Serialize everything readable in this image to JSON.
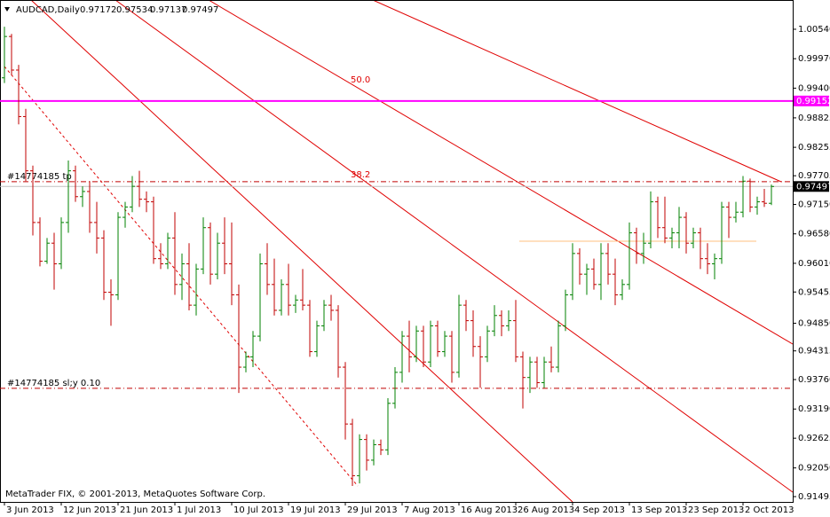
{
  "chart_data": {
    "type": "ohlc",
    "title": "AUDCAD,Daily",
    "footer": "MetaTrader FIX, © 2001-2013, MetaQuotes Software Corp.",
    "up_color": "#008000",
    "down_color": "#c00000",
    "open": [
      0.996,
      1.004,
      0.9975,
      0.9885,
      0.978,
      0.968,
      0.9605,
      0.964,
      0.96,
      0.968,
      0.978,
      0.973,
      0.974,
      0.968,
      0.965,
      0.9545,
      0.954,
      0.969,
      0.971,
      0.975,
      0.9725,
      0.972,
      0.961,
      0.96,
      0.965,
      0.956,
      0.96,
      0.952,
      0.959,
      0.967,
      0.958,
      0.964,
      0.96,
      0.954,
      0.94,
      0.942,
      0.946,
      0.96,
      0.956,
      0.951,
      0.956,
      0.952,
      0.953,
      0.952,
      0.943,
      0.948,
      0.952,
      0.951,
      0.94,
      0.929,
      0.919,
      0.926,
      0.922,
      0.925,
      0.924,
      0.933,
      0.939,
      0.946,
      0.942,
      0.947,
      0.941,
      0.948,
      0.943,
      0.946,
      0.939,
      0.952,
      0.949,
      0.944,
      0.942,
      0.947,
      0.95,
      0.948,
      0.949,
      0.942,
      0.938,
      0.941,
      0.937,
      0.941,
      0.94,
      0.948,
      0.954,
      0.962,
      0.958,
      0.959,
      0.956,
      0.962,
      0.958,
      0.954,
      0.956,
      0.966,
      0.962,
      0.964,
      0.972,
      0.967,
      0.965,
      0.966,
      0.969,
      0.964,
      0.966,
      0.961,
      0.96,
      0.961,
      0.971,
      0.969,
      0.97,
      0.976,
      0.971,
      0.972,
      0.97172
    ],
    "high": [
      1.0059,
      1.0045,
      0.9985,
      0.99,
      0.979,
      0.969,
      0.965,
      0.966,
      0.969,
      0.98,
      0.979,
      0.975,
      0.976,
      0.972,
      0.9665,
      0.957,
      0.97,
      0.972,
      0.977,
      0.978,
      0.974,
      0.973,
      0.964,
      0.966,
      0.97,
      0.962,
      0.964,
      0.96,
      0.969,
      0.968,
      0.966,
      0.969,
      0.968,
      0.956,
      0.943,
      0.947,
      0.962,
      0.964,
      0.961,
      0.957,
      0.96,
      0.954,
      0.959,
      0.953,
      0.949,
      0.953,
      0.954,
      0.952,
      0.941,
      0.93,
      0.927,
      0.927,
      0.926,
      0.926,
      0.934,
      0.94,
      0.947,
      0.949,
      0.948,
      0.948,
      0.949,
      0.949,
      0.947,
      0.947,
      0.954,
      0.953,
      0.951,
      0.946,
      0.948,
      0.952,
      0.951,
      0.951,
      0.953,
      0.943,
      0.942,
      0.942,
      0.942,
      0.944,
      0.949,
      0.955,
      0.964,
      0.963,
      0.96,
      0.961,
      0.964,
      0.964,
      0.961,
      0.957,
      0.968,
      0.967,
      0.966,
      0.974,
      0.973,
      0.973,
      0.967,
      0.971,
      0.97,
      0.967,
      0.967,
      0.964,
      0.962,
      0.972,
      0.972,
      0.972,
      0.977,
      0.9765,
      0.973,
      0.9745,
      0.97534
    ],
    "low": [
      0.995,
      0.9965,
      0.987,
      0.976,
      0.9655,
      0.9595,
      0.96,
      0.955,
      0.959,
      0.966,
      0.972,
      0.971,
      0.966,
      0.962,
      0.953,
      0.948,
      0.953,
      0.967,
      0.97,
      0.971,
      0.97,
      0.96,
      0.959,
      0.959,
      0.954,
      0.953,
      0.951,
      0.95,
      0.958,
      0.956,
      0.957,
      0.958,
      0.952,
      0.935,
      0.939,
      0.94,
      0.945,
      0.954,
      0.95,
      0.95,
      0.95,
      0.9505,
      0.951,
      0.942,
      0.942,
      0.947,
      0.949,
      0.938,
      0.926,
      0.917,
      0.9175,
      0.92,
      0.921,
      0.923,
      0.923,
      0.932,
      0.937,
      0.939,
      0.941,
      0.94,
      0.94,
      0.942,
      0.942,
      0.937,
      0.938,
      0.947,
      0.942,
      0.936,
      0.941,
      0.946,
      0.946,
      0.947,
      0.941,
      0.932,
      0.935,
      0.936,
      0.936,
      0.939,
      0.939,
      0.947,
      0.953,
      0.956,
      0.954,
      0.955,
      0.953,
      0.956,
      0.952,
      0.953,
      0.955,
      0.96,
      0.96,
      0.963,
      0.965,
      0.964,
      0.963,
      0.963,
      0.962,
      0.963,
      0.959,
      0.958,
      0.957,
      0.96,
      0.965,
      0.968,
      0.969,
      0.97,
      0.9695,
      0.971,
      0.97137
    ],
    "close": [
      1.004,
      0.9975,
      0.9885,
      0.978,
      0.968,
      0.9605,
      0.964,
      0.96,
      0.968,
      0.978,
      0.973,
      0.974,
      0.968,
      0.965,
      0.9545,
      0.954,
      0.969,
      0.971,
      0.975,
      0.9725,
      0.972,
      0.961,
      0.96,
      0.965,
      0.956,
      0.96,
      0.952,
      0.959,
      0.967,
      0.958,
      0.964,
      0.96,
      0.954,
      0.94,
      0.942,
      0.946,
      0.96,
      0.956,
      0.951,
      0.956,
      0.952,
      0.953,
      0.952,
      0.943,
      0.948,
      0.952,
      0.951,
      0.94,
      0.929,
      0.919,
      0.926,
      0.922,
      0.925,
      0.924,
      0.933,
      0.939,
      0.946,
      0.942,
      0.947,
      0.941,
      0.948,
      0.943,
      0.946,
      0.939,
      0.952,
      0.949,
      0.944,
      0.942,
      0.947,
      0.95,
      0.948,
      0.949,
      0.942,
      0.938,
      0.941,
      0.937,
      0.941,
      0.94,
      0.948,
      0.954,
      0.962,
      0.958,
      0.959,
      0.956,
      0.962,
      0.958,
      0.954,
      0.956,
      0.966,
      0.962,
      0.964,
      0.972,
      0.967,
      0.965,
      0.966,
      0.969,
      0.964,
      0.966,
      0.961,
      0.96,
      0.961,
      0.971,
      0.969,
      0.97,
      0.976,
      0.971,
      0.972,
      0.97172,
      0.97497
    ],
    "xlim": [
      -0.625,
      111.0
    ],
    "ylim": [
      0.91392,
      1.01106
    ],
    "xticks": [
      {
        "value": 0,
        "label": "3 Jun 2013"
      },
      {
        "value": 8,
        "label": "12 Jun 2013"
      },
      {
        "value": 16,
        "label": "21 Jun 2013"
      },
      {
        "value": 24,
        "label": "1 Jul 2013"
      },
      {
        "value": 32,
        "label": "10 Jul 2013"
      },
      {
        "value": 40,
        "label": "19 Jul 2013"
      },
      {
        "value": 48,
        "label": "29 Jul 2013"
      },
      {
        "value": 56,
        "label": "7 Aug 2013"
      },
      {
        "value": 64,
        "label": "16 Aug 2013"
      },
      {
        "value": 72,
        "label": "26 Aug 2013"
      },
      {
        "value": 80,
        "label": "4 Sep 2013"
      },
      {
        "value": 88,
        "label": "13 Sep 2013"
      },
      {
        "value": 96,
        "label": "23 Sep 2013"
      },
      {
        "value": 104,
        "label": "2 Oct 2013"
      }
    ],
    "yticks": [
      {
        "value": 1.0054,
        "label": "1.00540"
      },
      {
        "value": 0.9997,
        "label": "0.99970"
      },
      {
        "value": 0.994,
        "label": "0.99400"
      },
      0.98825,
      0.98255,
      0.97705,
      {
        "value": 0.9715,
        "label": "0.97150"
      },
      {
        "value": 0.9658,
        "label": "0.96580"
      },
      {
        "value": 0.9601,
        "label": "0.96010"
      },
      0.95455,
      {
        "value": 0.9485,
        "label": "0.94850"
      },
      0.94315,
      {
        "value": 0.9376,
        "label": "0.93760"
      },
      {
        "value": 0.9319,
        "label": "0.93190"
      },
      0.92625,
      {
        "value": 0.9205,
        "label": "0.92050"
      },
      0.91495
    ],
    "price_line": {
      "value": 0.99152,
      "color": "#ff00ff"
    },
    "levels": [
      {
        "label": "#14774185 tp",
        "value": 0.9759,
        "color": "#c00000"
      },
      {
        "label": "#14774185 sl;y 0.10",
        "value": 0.9359,
        "color": "#c00000"
      }
    ],
    "annotations": [
      "50.0",
      "38.2"
    ]
  }
}
